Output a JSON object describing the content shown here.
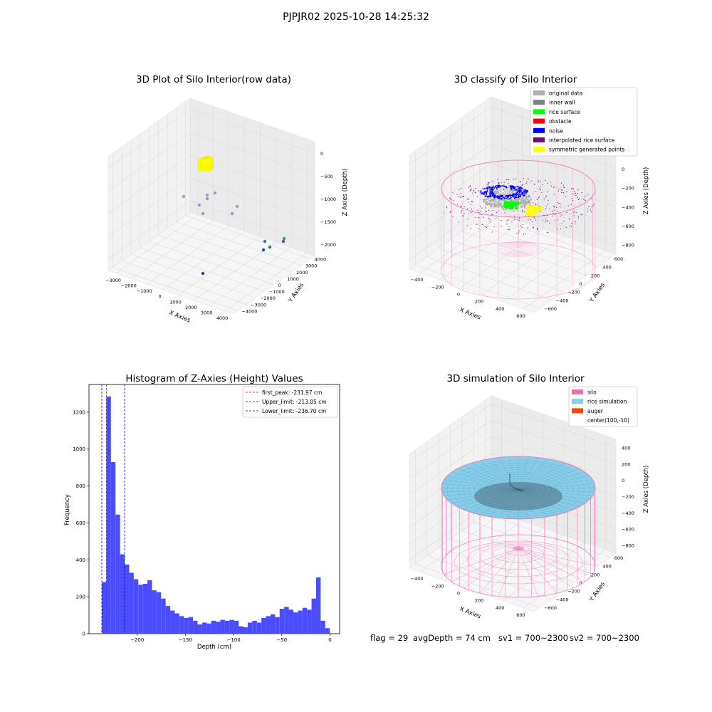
{
  "figure_title": "PJPJR02 2025-10-28 14:25:32",
  "footer": {
    "flag": "flag = 29",
    "avg_depth": "avgDepth = 74 cm",
    "sv1": "sv1 = 700~2300",
    "sv2": "sv2 = 700~2300"
  },
  "colors": {
    "grey_point": "#b0b0b0",
    "inner_wall": "#808080",
    "rice_surface": "#00ff00",
    "obstacle": "#ff0000",
    "noise": "#0000ff",
    "interpolated": "#800080",
    "symmetric": "#ffff00",
    "silo": "#ff69b4",
    "rice_sim": "#87ceeb",
    "auger": "#ff4500",
    "hist_bar": "#4b4bff"
  },
  "chart_data": [
    {
      "type": "scatter",
      "title": "3D Plot of Silo Interior(row data)",
      "xlabel": "X Axies",
      "ylabel": "Y Axies",
      "zlabel": "Z Axies (Depth)",
      "x_ticks": [
        "−3000",
        "−2000",
        "−1000",
        "0",
        "1000",
        "2000",
        "3000",
        "4000"
      ],
      "y_ticks": [
        "−4000",
        "−3000",
        "−2000",
        "−1000",
        "0",
        "1000",
        "2000",
        "3000",
        "4000"
      ],
      "z_ticks": [
        "0",
        "−500",
        "−1000",
        "−1500",
        "−2000"
      ],
      "xlim": [
        -3200,
        4300
      ],
      "ylim": [
        -4200,
        4300
      ],
      "zlim": [
        -2300,
        100
      ]
    },
    {
      "type": "scatter",
      "title": "3D classify of Silo Interior",
      "xlabel": "X Axies",
      "ylabel": "Y Axies",
      "zlabel": "Z Axies (Depth)",
      "x_ticks": [
        "−400",
        "−200",
        "0",
        "200",
        "400",
        "600"
      ],
      "y_ticks": [
        "−600",
        "−400",
        "−200",
        "0",
        "200",
        "400",
        "600"
      ],
      "z_ticks": [
        "200",
        "0",
        "−200",
        "−400",
        "−600",
        "−800"
      ],
      "legend": [
        "original data",
        "inner wall",
        "rice surface",
        "obstacle",
        "noise",
        "interpolated rice surface",
        "symmetric generated points"
      ],
      "legend_position": "upper right"
    },
    {
      "type": "bar",
      "title": "Histogram of Z-Axies (Height) Values",
      "xlabel": "Depth (cm)",
      "ylabel": "Frequency",
      "x_ticks": [
        "−200",
        "−150",
        "−100",
        "−50",
        "0"
      ],
      "y_ticks": [
        "0",
        "200",
        "400",
        "600",
        "800",
        "1000",
        "1200"
      ],
      "xlim": [
        -240,
        0
      ],
      "ylim": [
        0,
        1350
      ],
      "bin_start": -236.7,
      "bin_width": 4.73,
      "values": [
        280,
        1285,
        930,
        645,
        430,
        375,
        330,
        295,
        265,
        270,
        290,
        235,
        225,
        190,
        150,
        125,
        110,
        95,
        85,
        90,
        70,
        50,
        60,
        55,
        70,
        65,
        75,
        70,
        75,
        70,
        40,
        35,
        60,
        70,
        60,
        85,
        95,
        105,
        90,
        135,
        145,
        130,
        115,
        125,
        140,
        130,
        190,
        305,
        70,
        30
      ],
      "reference_lines": [
        {
          "label": "first_peak: -231.97 cm",
          "x": -231.97,
          "color": "#ff0000"
        },
        {
          "label": "Upper_limit: -213.05 cm",
          "x": -213.05,
          "color": "#0000cc"
        },
        {
          "label": "Lower_limit: -236.70 cm",
          "x": -236.7,
          "color": "#0000cc"
        }
      ],
      "legend_position": "upper right"
    },
    {
      "type": "surface",
      "title": "3D simulation of Silo Interior",
      "xlabel": "X Axies",
      "ylabel": "Y Axies",
      "zlabel": "Z Axies (Depth)",
      "x_ticks": [
        "−400",
        "−200",
        "0",
        "200",
        "400",
        "600"
      ],
      "y_ticks": [
        "−600",
        "−400",
        "−200",
        "0",
        "200",
        "400",
        "600"
      ],
      "z_ticks": [
        "400",
        "200",
        "0",
        "−200",
        "−400",
        "−600",
        "−800"
      ],
      "legend": [
        "silo",
        "rice simulation",
        "auger",
        "center(100,-10)"
      ],
      "legend_position": "upper right"
    }
  ]
}
